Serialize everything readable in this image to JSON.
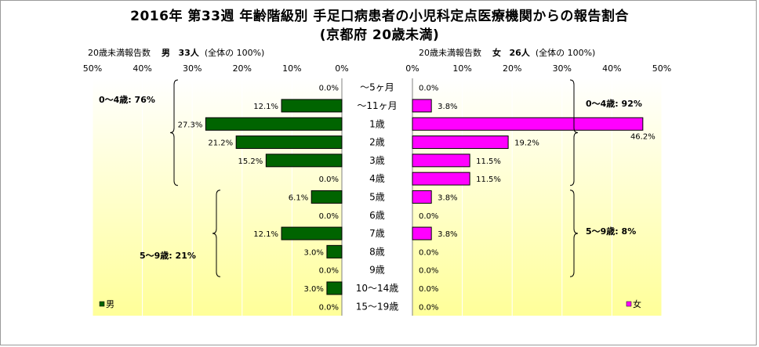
{
  "title_line1": "2016年 第33週 年齢階級別 手足口病患者の小児科定点医療機関からの報告割合",
  "title_line2": "(京都府 20歳未満)",
  "male_header": {
    "prefix": "20歳未満報告数",
    "sex": "男",
    "count": "33人",
    "note": "(全体の 100%)"
  },
  "female_header": {
    "prefix": "20歳未満報告数",
    "sex": "女",
    "count": "26人",
    "note": "(全体の 100%)"
  },
  "colors": {
    "male": "#006400",
    "female": "#ff00ff",
    "panel_top": "#ffffff",
    "panel_bottom": "#ffff99"
  },
  "chart_data": {
    "type": "bar",
    "orientation": "horizontal",
    "layout": "population-pyramid",
    "categories": [
      "～5ヶ月",
      "～11ヶ月",
      "1歳",
      "2歳",
      "3歳",
      "4歳",
      "5歳",
      "6歳",
      "7歳",
      "8歳",
      "9歳",
      "10～14歳",
      "15～19歳"
    ],
    "axis_ticks": [
      "50%",
      "40%",
      "30%",
      "20%",
      "10%",
      "0%"
    ],
    "axis_ticks_right": [
      "0%",
      "10%",
      "20%",
      "30%",
      "40%",
      "50%"
    ],
    "xlim": [
      0,
      50
    ],
    "series": [
      {
        "name": "男",
        "values": [
          0.0,
          12.1,
          27.3,
          21.2,
          15.2,
          0.0,
          6.1,
          0.0,
          12.1,
          3.0,
          0.0,
          3.0,
          0.0
        ],
        "labels": [
          "0.0%",
          "12.1%",
          "27.3%",
          "21.2%",
          "15.2%",
          "0.0%",
          "6.1%",
          "0.0%",
          "12.1%",
          "3.0%",
          "0.0%",
          "3.0%",
          "0.0%"
        ]
      },
      {
        "name": "女",
        "values": [
          0.0,
          3.8,
          46.2,
          19.2,
          11.5,
          11.5,
          3.8,
          0.0,
          3.8,
          0.0,
          0.0,
          0.0,
          0.0
        ],
        "labels": [
          "0.0%",
          "3.8%",
          "46.2%",
          "19.2%",
          "11.5%",
          "11.5%",
          "3.8%",
          "0.0%",
          "3.8%",
          "0.0%",
          "0.0%",
          "0.0%",
          "0.0%"
        ]
      }
    ],
    "annotations": {
      "male_0_4": "0～4歳: 76%",
      "male_5_9": "5～9歳: 21%",
      "female_0_4": "0～4歳: 92%",
      "female_5_9": "5～9歳: 8%"
    },
    "legend": {
      "male": "男",
      "female": "女"
    }
  }
}
